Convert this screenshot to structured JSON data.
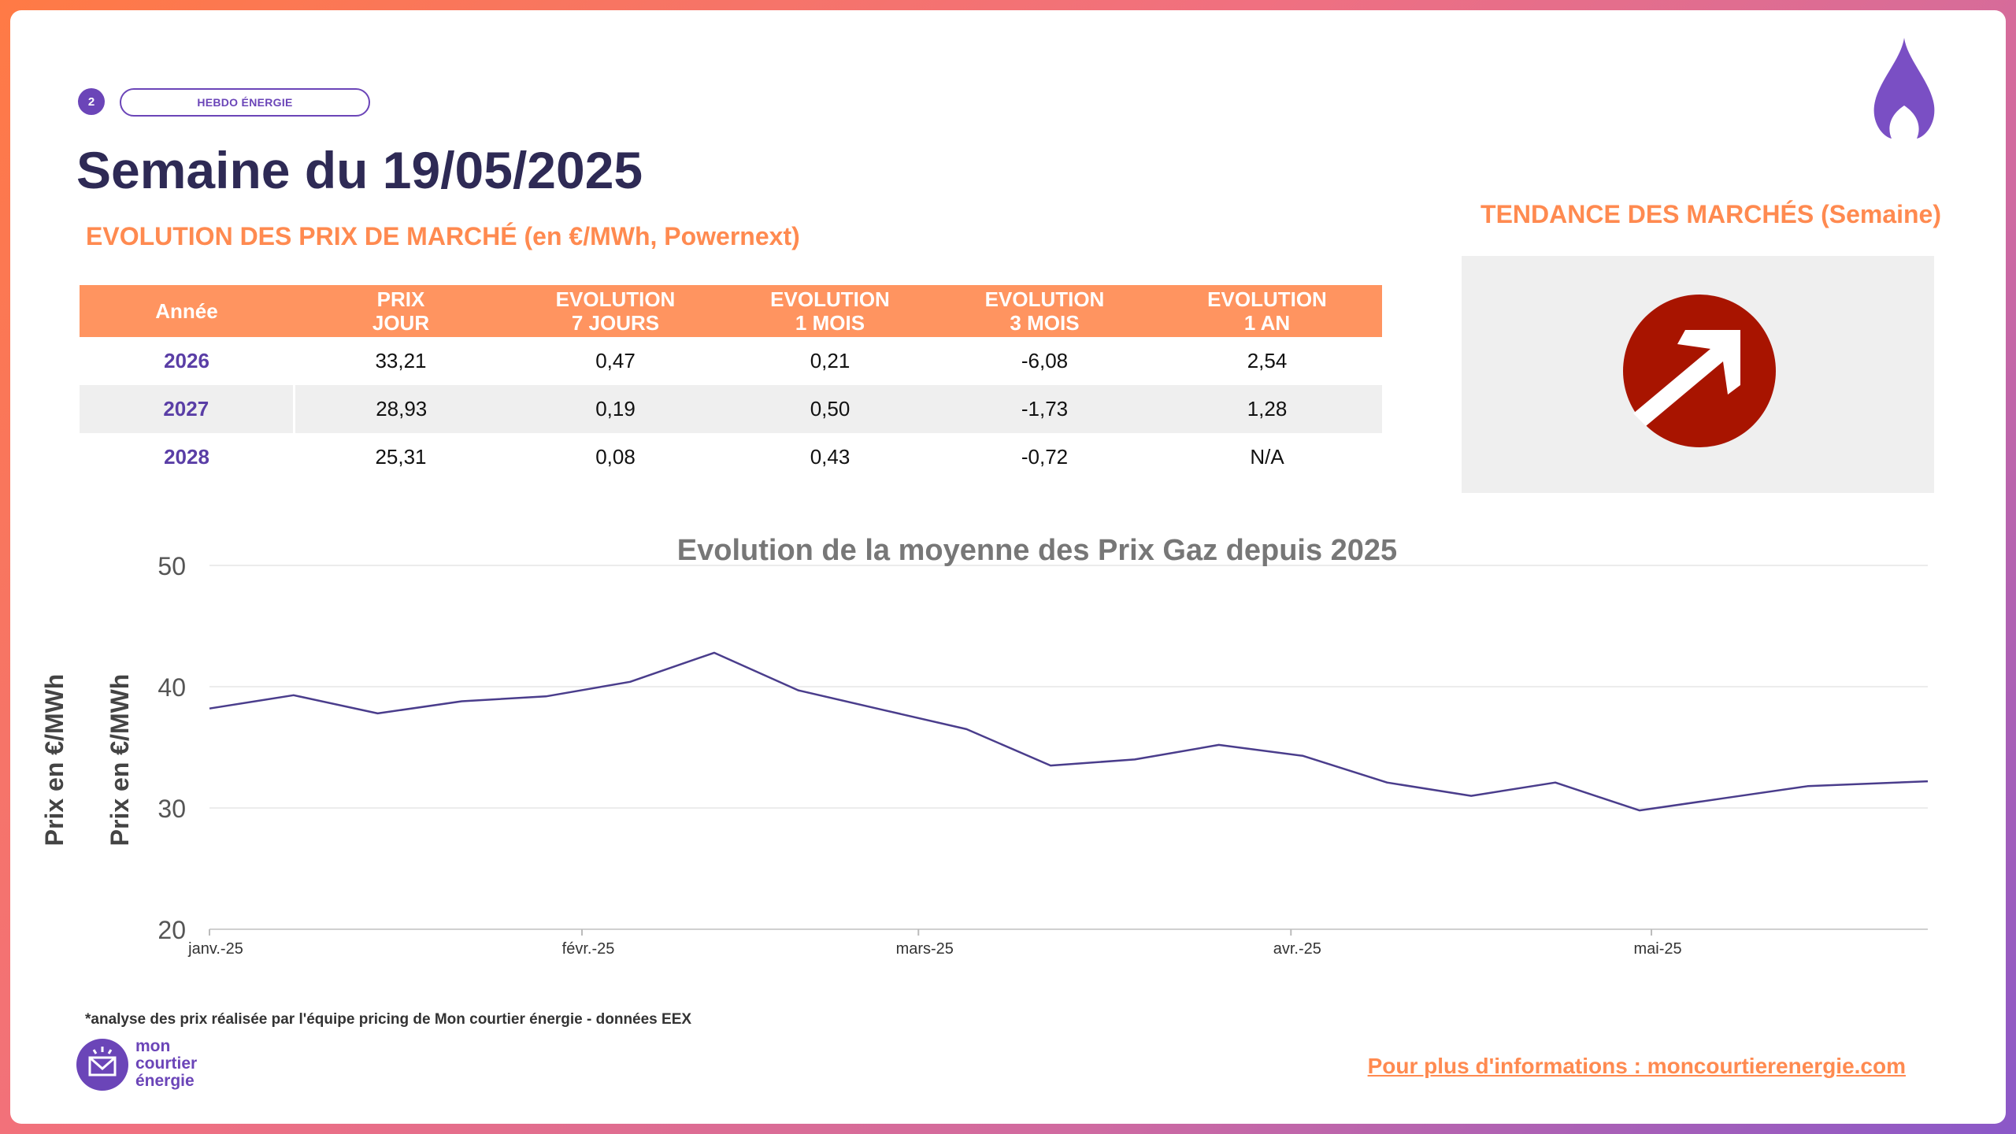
{
  "header": {
    "page_number": "2",
    "badge": "HEBDO ÉNERGIE",
    "title": "Semaine du 19/05/2025",
    "subtitle": "EVOLUTION DES PRIX DE MARCHÉ (en €/MWh, Powernext)"
  },
  "table": {
    "headers": [
      {
        "l1": "Année",
        "l2": ""
      },
      {
        "l1": "PRIX",
        "l2": "JOUR"
      },
      {
        "l1": "EVOLUTION",
        "l2": "7 JOURS"
      },
      {
        "l1": "EVOLUTION",
        "l2": "1 MOIS"
      },
      {
        "l1": "EVOLUTION",
        "l2": "3 MOIS"
      },
      {
        "l1": "EVOLUTION",
        "l2": "1 AN"
      }
    ],
    "rows": [
      [
        "2026",
        "33,21",
        "0,47",
        "0,21",
        "-6,08",
        "2,54"
      ],
      [
        "2027",
        "28,93",
        "0,19",
        "0,50",
        "-1,73",
        "1,28"
      ],
      [
        "2028",
        "25,31",
        "0,08",
        "0,43",
        "-0,72",
        "N/A"
      ]
    ]
  },
  "trend": {
    "title": "TENDANCE DES MARCHÉS (Semaine)",
    "icon": "trend-up-arrow-icon",
    "color": "#a81400"
  },
  "chart_data": {
    "type": "line",
    "title": "Evolution de la moyenne des Prix Gaz depuis 2025",
    "ylabel": "Prix en €/MWh",
    "ylabel_outer": "Prix en €/MWh",
    "xlabel": "",
    "ylim": [
      20,
      50
    ],
    "yticks": [
      20,
      30,
      40,
      50
    ],
    "xlim": [
      "2025-01-01",
      "2025-05-24"
    ],
    "xticks": [
      {
        "date": "2025-01-01",
        "label": "janv.-25"
      },
      {
        "date": "2025-02-01",
        "label": "févr.-25"
      },
      {
        "date": "2025-03-01",
        "label": "mars-25"
      },
      {
        "date": "2025-04-01",
        "label": "avr.-25"
      },
      {
        "date": "2025-05-01",
        "label": "mai-25"
      }
    ],
    "grid": true,
    "line_color": "#4a3d8c",
    "series": [
      {
        "x": [
          "2025-01-01",
          "2025-01-08",
          "2025-01-15",
          "2025-01-22",
          "2025-01-29",
          "2025-02-05",
          "2025-02-12",
          "2025-02-19",
          "2025-02-26",
          "2025-03-05",
          "2025-03-12",
          "2025-03-19",
          "2025-03-26",
          "2025-04-02",
          "2025-04-09",
          "2025-04-16",
          "2025-04-23",
          "2025-04-30",
          "2025-05-07",
          "2025-05-14",
          "2025-05-24"
        ],
        "values": [
          38.2,
          39.3,
          37.8,
          38.8,
          39.2,
          40.4,
          42.8,
          39.7,
          38.1,
          36.5,
          33.5,
          34.0,
          35.2,
          34.3,
          32.1,
          31.0,
          32.1,
          29.8,
          30.8,
          31.8,
          32.2
        ]
      }
    ]
  },
  "footer": {
    "footnote": "*analyse des prix réalisée par l'équipe pricing de Mon courtier énergie -  données EEX",
    "logo_line1": "mon",
    "logo_line2": "courtier",
    "logo_line3": "énergie",
    "link": "Pour plus d'informations : moncourtierenergie.com"
  },
  "colors": {
    "accent": "#ff8a50",
    "brand": "#6b45b8",
    "title": "#2e2a55"
  }
}
